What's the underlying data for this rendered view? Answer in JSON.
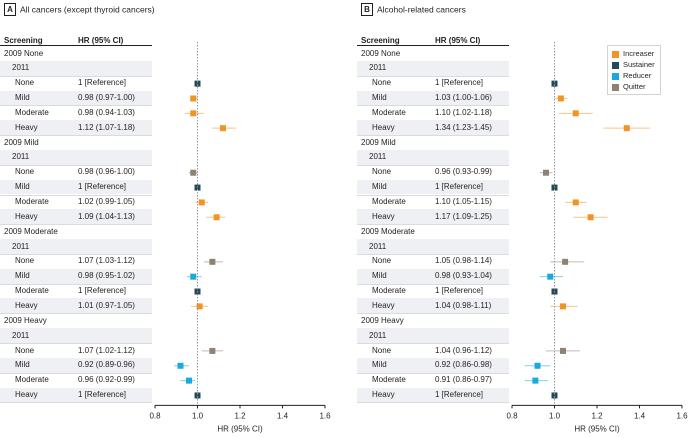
{
  "chart_data": [
    {
      "type": "forest",
      "panel_label": "A",
      "title": "All cancers (except thyroid cancers)",
      "col_screening": "Screening",
      "col_hr": "HR (95% CI)",
      "xlabel": "HR (95% CI)",
      "xlim": [
        0.8,
        1.6
      ],
      "xticks": [
        "0.8",
        "1.0",
        "1.2",
        "1.4",
        "1.6"
      ],
      "reference_line": 1.0,
      "groups": [
        {
          "label": "2009 None",
          "sublabel": "2011",
          "rows": [
            {
              "label": "None",
              "hr_text": "1 [Reference]",
              "hr": 1.0,
              "lo": 1.0,
              "hi": 1.0,
              "category": "Sustainer"
            },
            {
              "label": "Mild",
              "hr_text": "0.98 (0.97-1.00)",
              "hr": 0.98,
              "lo": 0.97,
              "hi": 1.0,
              "category": "Increaser"
            },
            {
              "label": "Moderate",
              "hr_text": "0.98 (0.94-1.03)",
              "hr": 0.98,
              "lo": 0.94,
              "hi": 1.03,
              "category": "Increaser"
            },
            {
              "label": "Heavy",
              "hr_text": "1.12 (1.07-1.18)",
              "hr": 1.12,
              "lo": 1.07,
              "hi": 1.18,
              "category": "Increaser"
            }
          ]
        },
        {
          "label": "2009 Mild",
          "sublabel": "2011",
          "rows": [
            {
              "label": "None",
              "hr_text": "0.98 (0.96-1.00)",
              "hr": 0.98,
              "lo": 0.96,
              "hi": 1.0,
              "category": "Quitter"
            },
            {
              "label": "Mild",
              "hr_text": "1 [Reference]",
              "hr": 1.0,
              "lo": 1.0,
              "hi": 1.0,
              "category": "Sustainer"
            },
            {
              "label": "Moderate",
              "hr_text": "1.02 (0.99-1.05)",
              "hr": 1.02,
              "lo": 0.99,
              "hi": 1.05,
              "category": "Increaser"
            },
            {
              "label": "Heavy",
              "hr_text": "1.09 (1.04-1.13)",
              "hr": 1.09,
              "lo": 1.04,
              "hi": 1.13,
              "category": "Increaser"
            }
          ]
        },
        {
          "label": "2009 Moderate",
          "sublabel": "2011",
          "rows": [
            {
              "label": "None",
              "hr_text": "1.07 (1.03-1.12)",
              "hr": 1.07,
              "lo": 1.03,
              "hi": 1.12,
              "category": "Quitter"
            },
            {
              "label": "Mild",
              "hr_text": "0.98 (0.95-1.02)",
              "hr": 0.98,
              "lo": 0.95,
              "hi": 1.02,
              "category": "Reducer"
            },
            {
              "label": "Moderate",
              "hr_text": "1 [Reference]",
              "hr": 1.0,
              "lo": 1.0,
              "hi": 1.0,
              "category": "Sustainer"
            },
            {
              "label": "Heavy",
              "hr_text": "1.01 (0.97-1.05)",
              "hr": 1.01,
              "lo": 0.97,
              "hi": 1.05,
              "category": "Increaser"
            }
          ]
        },
        {
          "label": "2009 Heavy",
          "sublabel": "2011",
          "rows": [
            {
              "label": "None",
              "hr_text": "1.07 (1.02-1.12)",
              "hr": 1.07,
              "lo": 1.02,
              "hi": 1.12,
              "category": "Quitter"
            },
            {
              "label": "Mild",
              "hr_text": "0.92 (0.89-0.96)",
              "hr": 0.92,
              "lo": 0.89,
              "hi": 0.96,
              "category": "Reducer"
            },
            {
              "label": "Moderate",
              "hr_text": "0.96 (0.92-0.99)",
              "hr": 0.96,
              "lo": 0.92,
              "hi": 0.99,
              "category": "Reducer"
            },
            {
              "label": "Heavy",
              "hr_text": "1 [Reference]",
              "hr": 1.0,
              "lo": 1.0,
              "hi": 1.0,
              "category": "Sustainer"
            }
          ]
        }
      ]
    },
    {
      "type": "forest",
      "panel_label": "B",
      "title": "Alcohol-related cancers",
      "col_screening": "Screening",
      "col_hr": "HR (95% CI)",
      "xlabel": "HR (95% CI)",
      "xlim": [
        0.8,
        1.6
      ],
      "xticks": [
        "0.8",
        "1.0",
        "1.2",
        "1.4",
        "1.6"
      ],
      "reference_line": 1.0,
      "legend": [
        "Increaser",
        "Sustainer",
        "Reducer",
        "Quitter"
      ],
      "groups": [
        {
          "label": "2009 None",
          "sublabel": "2011",
          "rows": [
            {
              "label": "None",
              "hr_text": "1 [Reference]",
              "hr": 1.0,
              "lo": 1.0,
              "hi": 1.0,
              "category": "Sustainer"
            },
            {
              "label": "Mild",
              "hr_text": "1.03 (1.00-1.06)",
              "hr": 1.03,
              "lo": 1.0,
              "hi": 1.06,
              "category": "Increaser"
            },
            {
              "label": "Moderate",
              "hr_text": "1.10 (1.02-1.18)",
              "hr": 1.1,
              "lo": 1.02,
              "hi": 1.18,
              "category": "Increaser"
            },
            {
              "label": "Heavy",
              "hr_text": "1.34 (1.23-1.45)",
              "hr": 1.34,
              "lo": 1.23,
              "hi": 1.45,
              "category": "Increaser"
            }
          ]
        },
        {
          "label": "2009 Mild",
          "sublabel": "2011",
          "rows": [
            {
              "label": "None",
              "hr_text": "0.96 (0.93-0.99)",
              "hr": 0.96,
              "lo": 0.93,
              "hi": 0.99,
              "category": "Quitter"
            },
            {
              "label": "Mild",
              "hr_text": "1 [Reference]",
              "hr": 1.0,
              "lo": 1.0,
              "hi": 1.0,
              "category": "Sustainer"
            },
            {
              "label": "Moderate",
              "hr_text": "1.10 (1.05-1.15)",
              "hr": 1.1,
              "lo": 1.05,
              "hi": 1.15,
              "category": "Increaser"
            },
            {
              "label": "Heavy",
              "hr_text": "1.17 (1.09-1.25)",
              "hr": 1.17,
              "lo": 1.09,
              "hi": 1.25,
              "category": "Increaser"
            }
          ]
        },
        {
          "label": "2009 Moderate",
          "sublabel": "2011",
          "rows": [
            {
              "label": "None",
              "hr_text": "1.05 (0.98-1.14)",
              "hr": 1.05,
              "lo": 0.98,
              "hi": 1.14,
              "category": "Quitter"
            },
            {
              "label": "Mild",
              "hr_text": "0.98 (0.93-1.04)",
              "hr": 0.98,
              "lo": 0.93,
              "hi": 1.04,
              "category": "Reducer"
            },
            {
              "label": "Moderate",
              "hr_text": "1 [Reference]",
              "hr": 1.0,
              "lo": 1.0,
              "hi": 1.0,
              "category": "Sustainer"
            },
            {
              "label": "Heavy",
              "hr_text": "1.04 (0.98-1.11)",
              "hr": 1.04,
              "lo": 0.98,
              "hi": 1.11,
              "category": "Increaser"
            }
          ]
        },
        {
          "label": "2009 Heavy",
          "sublabel": "2011",
          "rows": [
            {
              "label": "None",
              "hr_text": "1.04 (0.96-1.12)",
              "hr": 1.04,
              "lo": 0.96,
              "hi": 1.12,
              "category": "Quitter"
            },
            {
              "label": "Mild",
              "hr_text": "0.92 (0.86-0.98)",
              "hr": 0.92,
              "lo": 0.86,
              "hi": 0.98,
              "category": "Reducer"
            },
            {
              "label": "Moderate",
              "hr_text": "0.91 (0.86-0.97)",
              "hr": 0.91,
              "lo": 0.86,
              "hi": 0.97,
              "category": "Reducer"
            },
            {
              "label": "Heavy",
              "hr_text": "1 [Reference]",
              "hr": 1.0,
              "lo": 1.0,
              "hi": 1.0,
              "category": "Sustainer"
            }
          ]
        }
      ]
    }
  ],
  "colors": {
    "Increaser": "#f29423",
    "Sustainer": "#24495a",
    "Reducer": "#1aa9df",
    "Quitter": "#8e8373",
    "whisker": "#e7b486",
    "reference_line": "#9a9a9a",
    "row_shade": "#eef0f3"
  }
}
